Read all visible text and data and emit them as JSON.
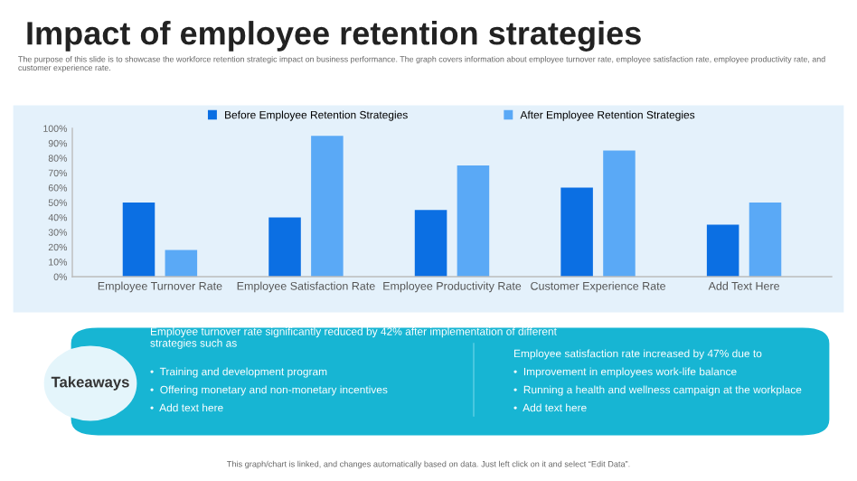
{
  "chart_data": {
    "type": "bar",
    "title": "Impact of employee retention strategies",
    "subtitle": "The purpose of this slide is to showcase the workforce retention strategic impact on business performance. The graph covers information about employee turnover rate, employee satisfaction rate, employee productivity rate, and customer experience rate.",
    "categories": [
      "Employee Turnover Rate",
      "Employee Satisfaction Rate",
      "Employee Productivity Rate",
      "Customer Experience Rate",
      "Add Text Here"
    ],
    "series": [
      {
        "name": "Before Employee Retention Strategies",
        "color": "#0b6fe3",
        "values": [
          50,
          40,
          45,
          60,
          35
        ]
      },
      {
        "name": "After Employee Retention Strategies",
        "color": "#5aa9f6",
        "values": [
          18,
          95,
          75,
          85,
          50
        ]
      }
    ],
    "ylim": [
      0,
      100
    ],
    "yticks": [
      {
        "value": 0,
        "label": "0%"
      },
      {
        "value": 10,
        "label": "10%"
      },
      {
        "value": 20,
        "label": "20%"
      },
      {
        "value": 30,
        "label": "30%"
      },
      {
        "value": 40,
        "label": "40%"
      },
      {
        "value": 50,
        "label": "50%"
      },
      {
        "value": 60,
        "label": "60%"
      },
      {
        "value": 70,
        "label": "70%"
      },
      {
        "value": 80,
        "label": "80%"
      },
      {
        "value": 90,
        "label": "90%"
      },
      {
        "value": 100,
        "label": "100%"
      }
    ],
    "grid": false,
    "legend": "top",
    "annotations": [
      "Takeaways",
      "Employee turnover rate significantly reduced by 42% after implementation of different strategies such as",
      "•  Training and development program",
      "•  Offering monetary and non-monetary incentives",
      "•  Add text here",
      "Employee satisfaction rate increased by 47% due to",
      "•  Improvement in employees work-life balance",
      "•  Running a health and wellness campaign at the workplace",
      "•  Add text here",
      "This graph/chart is linked, and changes automatically based on data. Just left click on it and select “Edit Data”."
    ]
  }
}
